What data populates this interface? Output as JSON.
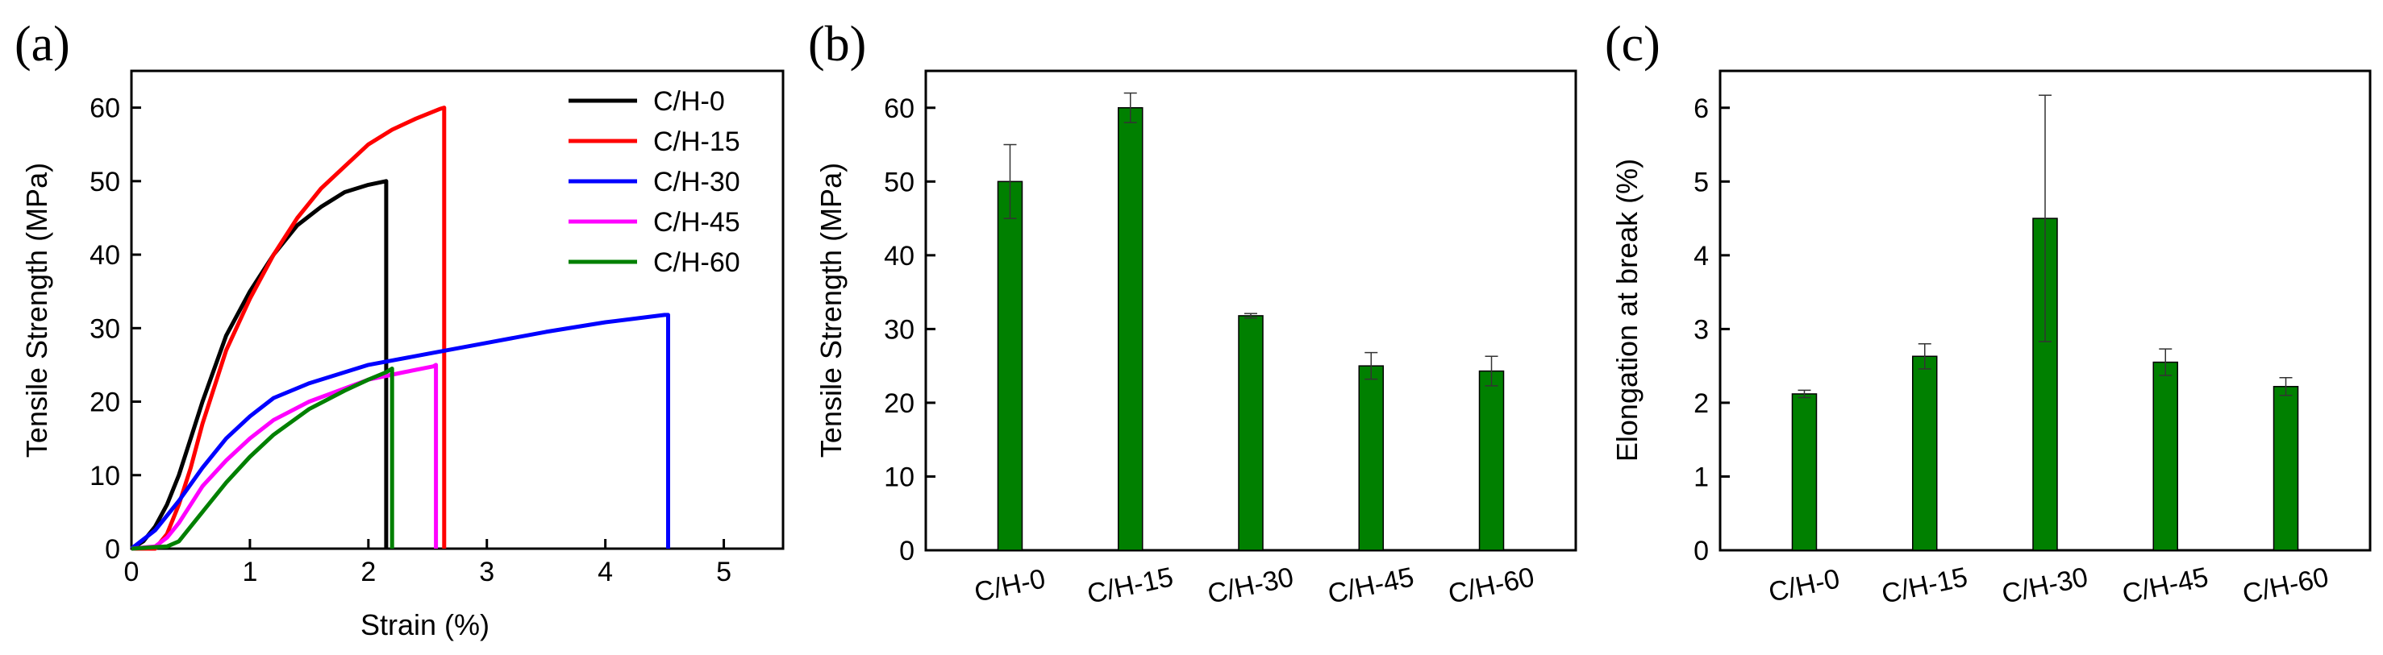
{
  "chart_data": [
    {
      "panel": "(a)",
      "type": "line",
      "xlabel": "Strain (%)",
      "ylabel": "Tensile Strength (MPa)",
      "xlim": [
        0,
        5.5
      ],
      "ylim": [
        0,
        65
      ],
      "xticks": [
        0,
        1,
        2,
        3,
        4,
        5
      ],
      "yticks": [
        0,
        10,
        20,
        30,
        40,
        50,
        60
      ],
      "grid": false,
      "legend_position": "top-right",
      "series": [
        {
          "name": "C/H-0",
          "color": "#000000",
          "x": [
            0,
            0.1,
            0.2,
            0.3,
            0.4,
            0.5,
            0.6,
            0.8,
            1.0,
            1.2,
            1.4,
            1.6,
            1.8,
            2.0,
            2.15,
            2.15
          ],
          "y": [
            0,
            1,
            3,
            6,
            10,
            15,
            20,
            29,
            35,
            40,
            44,
            46.5,
            48.5,
            49.5,
            50,
            0
          ]
        },
        {
          "name": "C/H-15",
          "color": "#ff0000",
          "x": [
            0,
            0.2,
            0.3,
            0.4,
            0.5,
            0.6,
            0.8,
            1.0,
            1.2,
            1.4,
            1.6,
            1.8,
            2.0,
            2.2,
            2.4,
            2.6,
            2.64,
            2.64
          ],
          "y": [
            0,
            0,
            2,
            6,
            11,
            17,
            27,
            34,
            40,
            45,
            49,
            52,
            55,
            57,
            58.5,
            59.8,
            60,
            0
          ]
        },
        {
          "name": "C/H-30",
          "color": "#0000ff",
          "x": [
            0,
            0.2,
            0.4,
            0.6,
            0.8,
            1.0,
            1.2,
            1.5,
            2.0,
            2.5,
            3.0,
            3.5,
            4.0,
            4.5,
            4.53,
            4.53
          ],
          "y": [
            0,
            2.5,
            6.5,
            11,
            15,
            18,
            20.5,
            22.5,
            25,
            26.5,
            28,
            29.5,
            30.8,
            31.8,
            31.8,
            0
          ]
        },
        {
          "name": "C/H-45",
          "color": "#ff00ff",
          "x": [
            0,
            0.2,
            0.3,
            0.4,
            0.5,
            0.6,
            0.8,
            1.0,
            1.2,
            1.5,
            2.0,
            2.3,
            2.55,
            2.57,
            2.57
          ],
          "y": [
            0,
            0.3,
            1.5,
            3.5,
            6,
            8.5,
            12,
            15,
            17.5,
            20,
            23,
            24,
            24.8,
            25,
            0
          ]
        },
        {
          "name": "C/H-60",
          "color": "#008000",
          "x": [
            0,
            0.3,
            0.4,
            0.5,
            0.6,
            0.8,
            1.0,
            1.2,
            1.5,
            1.8,
            2.0,
            2.15,
            2.2,
            2.2
          ],
          "y": [
            0,
            0.3,
            1,
            3,
            5,
            9,
            12.5,
            15.5,
            19,
            21.5,
            23,
            24,
            24.5,
            0
          ]
        }
      ]
    },
    {
      "panel": "(b)",
      "type": "bar",
      "categories": [
        "C/H-0",
        "C/H-15",
        "C/H-30",
        "C/H-45",
        "C/H-60"
      ],
      "values": [
        50,
        60,
        31.8,
        25,
        24.3
      ],
      "errors": [
        5,
        2,
        0.3,
        1.8,
        2
      ],
      "ylabel": "Tensile Strength (MPa)",
      "ylim": [
        0,
        65
      ],
      "yticks": [
        0,
        10,
        20,
        30,
        40,
        50,
        60
      ],
      "bar_color": "#008000",
      "grid": false
    },
    {
      "panel": "(c)",
      "type": "bar",
      "categories": [
        "C/H-0",
        "C/H-15",
        "C/H-30",
        "C/H-45",
        "C/H-60"
      ],
      "values": [
        2.12,
        2.63,
        4.5,
        2.55,
        2.22
      ],
      "errors": [
        0.05,
        0.17,
        1.67,
        0.18,
        0.12
      ],
      "ylabel": "Elongation at break (%)",
      "ylim": [
        0,
        6.5
      ],
      "yticks": [
        0,
        1,
        2,
        3,
        4,
        5,
        6
      ],
      "bar_color": "#008000",
      "grid": false
    }
  ]
}
